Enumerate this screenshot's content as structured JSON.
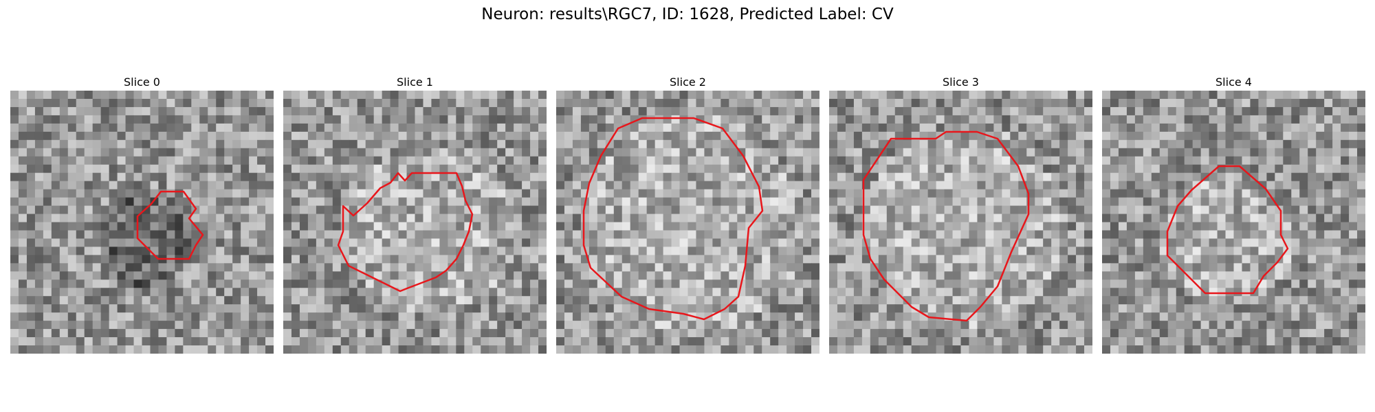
{
  "figure": {
    "suptitle": "Neuron: results\\RGC7, ID: 1628, Predicted Label: CV"
  },
  "panels": [
    {
      "title": "Slice 0"
    },
    {
      "title": "Slice 1"
    },
    {
      "title": "Slice 2"
    },
    {
      "title": "Slice 3"
    },
    {
      "title": "Slice 4"
    }
  ],
  "colors": {
    "contour": "#e8161b",
    "colormap": "grayscale"
  }
}
